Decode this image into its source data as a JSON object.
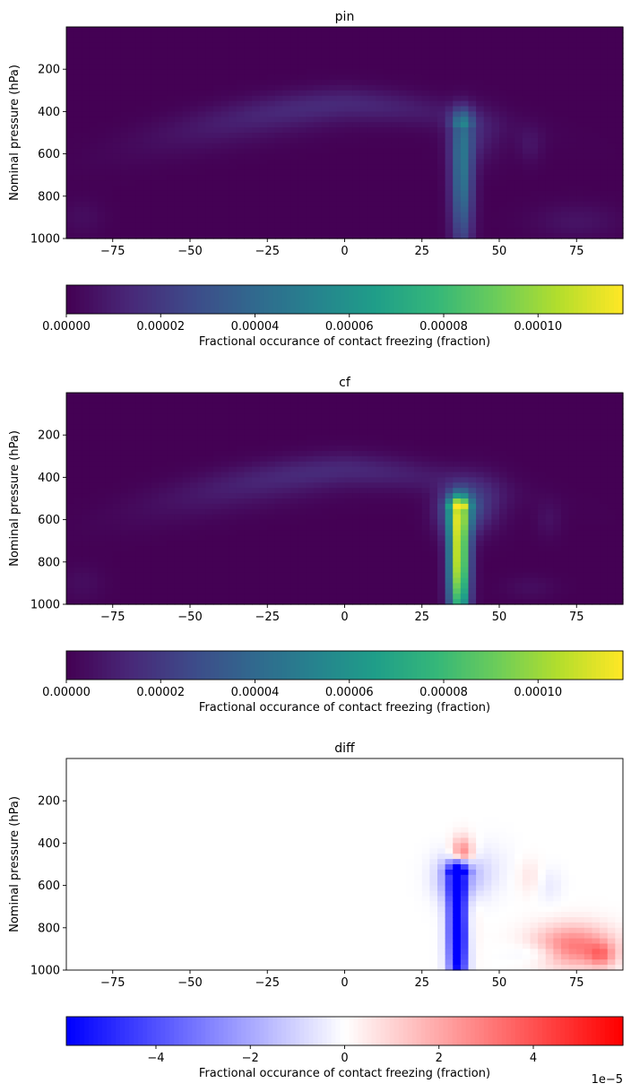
{
  "chart_data": [
    {
      "type": "heatmap",
      "title": "pin",
      "ylabel": "Nominal pressure (hPa)",
      "xlabel": "",
      "xlim": [
        -90,
        90
      ],
      "ylim": [
        1000,
        0
      ],
      "xticks": [
        "−75",
        "−50",
        "−25",
        "0",
        "25",
        "50",
        "75"
      ],
      "yticks": [
        "200",
        "400",
        "600",
        "800",
        "1000"
      ],
      "colormap": "viridis",
      "colorbar": {
        "label": "Fractional occurance of contact    freezing (fraction)",
        "range": [
          0,
          0.000118
        ],
        "ticks": [
          "0.00000",
          "0.00002",
          "0.00004",
          "0.00006",
          "0.00008",
          "0.00010"
        ],
        "offset": ""
      },
      "features": [
        {
          "lat": 38,
          "p_top": 450,
          "p_bottom": 1000,
          "peak": 5e-05
        },
        {
          "lat": 0,
          "p_center": 360,
          "peak": 1e-05
        }
      ]
    },
    {
      "type": "heatmap",
      "title": "cf",
      "ylabel": "Nominal pressure (hPa)",
      "xlabel": "",
      "xlim": [
        -90,
        90
      ],
      "ylim": [
        1000,
        0
      ],
      "xticks": [
        "−75",
        "−50",
        "−25",
        "0",
        "25",
        "50",
        "75"
      ],
      "yticks": [
        "200",
        "400",
        "600",
        "800",
        "1000"
      ],
      "colormap": "viridis",
      "colorbar": {
        "label": "Fractional occurance of contact    freezing (fraction)",
        "range": [
          0,
          0.000118
        ],
        "ticks": [
          "0.00000",
          "0.00002",
          "0.00004",
          "0.00006",
          "0.00008",
          "0.00010"
        ],
        "offset": ""
      },
      "features": [
        {
          "lat": 37,
          "p_top": 450,
          "p_bottom": 1000,
          "peak": 0.000115
        },
        {
          "lat": 0,
          "p_center": 360,
          "peak": 1e-05
        }
      ]
    },
    {
      "type": "heatmap",
      "title": "diff",
      "ylabel": "Nominal pressure (hPa)",
      "xlabel": "",
      "xlim": [
        -90,
        90
      ],
      "ylim": [
        1000,
        0
      ],
      "xticks": [
        "−75",
        "−50",
        "−25",
        "0",
        "25",
        "50",
        "75"
      ],
      "yticks": [
        "200",
        "400",
        "600",
        "800",
        "1000"
      ],
      "colormap": "bwr",
      "colorbar": {
        "label": "Fractional occurance of contact    freezing (fraction)",
        "range": [
          -5.9,
          5.9
        ],
        "ticks": [
          "−4",
          "−2",
          "0",
          "2",
          "4"
        ],
        "offset": "1e−5"
      },
      "features": [
        {
          "lat": 37,
          "p_top": 450,
          "p_bottom": 1000,
          "peak": -5.9
        },
        {
          "lat": 75,
          "p_center": 900,
          "peak": 2.5
        }
      ]
    }
  ]
}
